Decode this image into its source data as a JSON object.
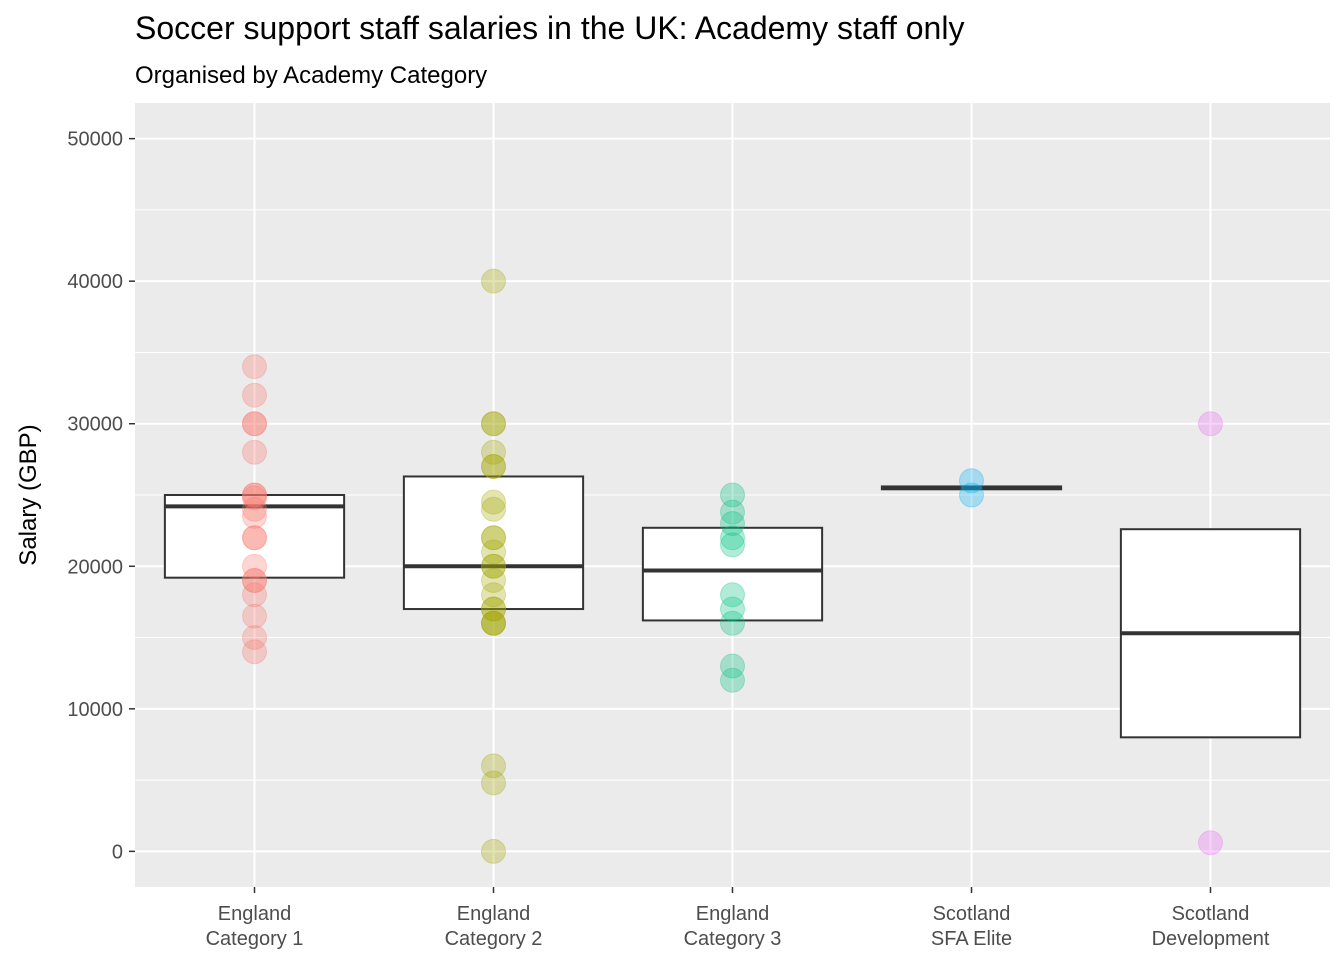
{
  "chart_data": {
    "type": "box",
    "title": "Soccer support staff salaries in the UK: Academy staff only",
    "subtitle": "Organised by Academy Category",
    "xlabel": "",
    "ylabel": "Salary (GBP)",
    "ylim": [
      -2500,
      52500
    ],
    "yticks": [
      0,
      10000,
      20000,
      30000,
      40000,
      50000
    ],
    "grid": true,
    "categories": [
      [
        "England",
        "Category 1"
      ],
      [
        "England",
        "Category 2"
      ],
      [
        "England",
        "Category 3"
      ],
      [
        "Scotland",
        "SFA Elite"
      ],
      [
        "Scotland",
        "Development"
      ]
    ],
    "series": [
      {
        "color": "#F8766D",
        "box": {
          "q1": 19200,
          "median": 24200,
          "q3": 25000
        },
        "points": [
          34000,
          32000,
          30000,
          30000,
          28000,
          25000,
          25000,
          24800,
          24000,
          23500,
          22000,
          22000,
          20000,
          19000,
          19000,
          18000,
          16500,
          15000,
          14000
        ]
      },
      {
        "color": "#A3A500",
        "box": {
          "q1": 17000,
          "median": 20000,
          "q3": 26300
        },
        "points": [
          40000,
          30000,
          30000,
          28000,
          27000,
          27000,
          24500,
          24000,
          22000,
          22000,
          21000,
          20000,
          20000,
          19000,
          18000,
          17000,
          17000,
          16000,
          16000,
          16000,
          6000,
          4800,
          0
        ]
      },
      {
        "color": "#00BF7D",
        "box": {
          "q1": 16200,
          "median": 19700,
          "q3": 22700
        },
        "points": [
          25000,
          23800,
          23000,
          22000,
          21500,
          18000,
          17000,
          16000,
          13000,
          12000
        ]
      },
      {
        "color": "#00B0F6",
        "box": {
          "q1": 25400,
          "median": 25500,
          "q3": 25600
        },
        "points": [
          26000,
          25000
        ]
      },
      {
        "color": "#E76BF3",
        "box": {
          "q1": 8000,
          "median": 15300,
          "q3": 22600
        },
        "points": [
          30000,
          600
        ]
      }
    ]
  }
}
